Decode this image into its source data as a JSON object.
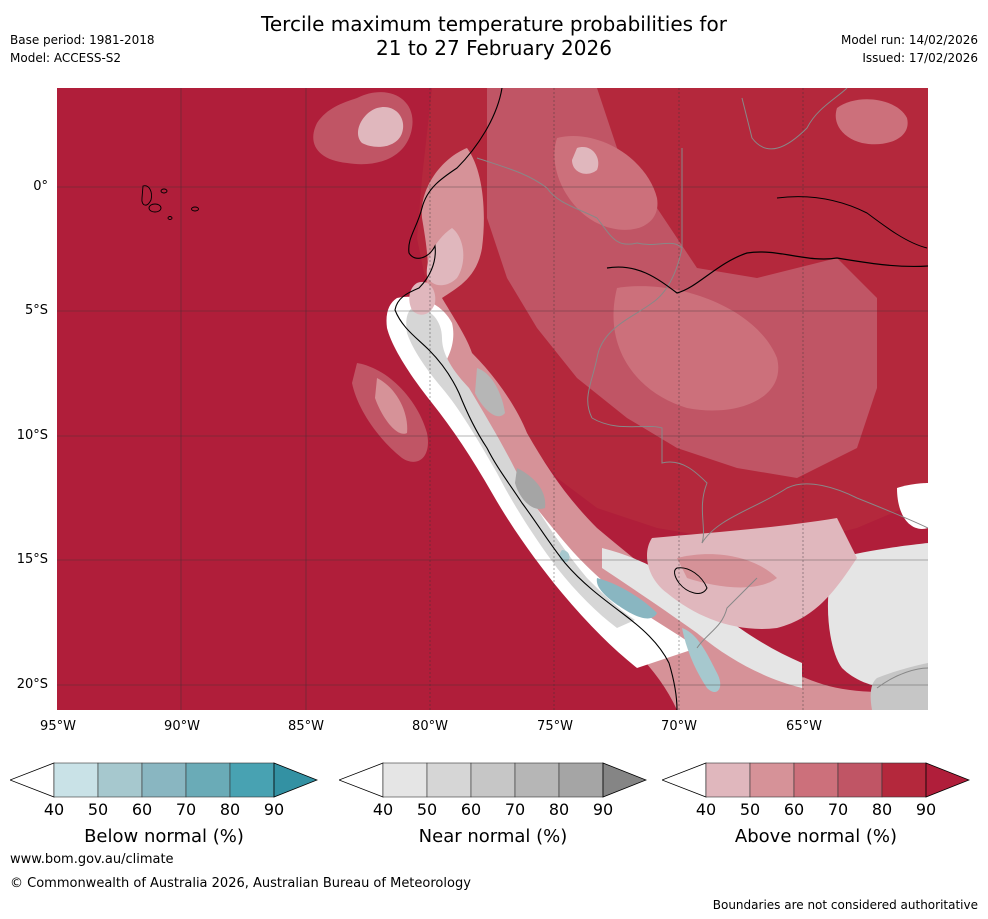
{
  "header": {
    "title_line1": "Tercile maximum temperature probabilities for",
    "title_line2": "21 to 27 February 2026",
    "base_period": "Base period: 1981-2018",
    "model": "Model: ACCESS-S2",
    "model_run": "Model run: 14/02/2026",
    "issued": "Issued: 17/02/2026"
  },
  "map": {
    "lat_labels": [
      "0°",
      "5°S",
      "10°S",
      "15°S",
      "20°S"
    ],
    "lon_labels": [
      "95°W",
      "90°W",
      "85°W",
      "80°W",
      "75°W",
      "70°W",
      "65°W"
    ]
  },
  "legend": {
    "ticks": [
      "40",
      "50",
      "60",
      "70",
      "80",
      "90"
    ],
    "below": {
      "label": "Below normal (%)",
      "colors": [
        "#ffffff",
        "#c9e2e7",
        "#a6c8ce",
        "#89b6c1",
        "#6aabb7",
        "#48a2b2",
        "#3391a3"
      ]
    },
    "near": {
      "label": "Near normal (%)",
      "colors": [
        "#ffffff",
        "#e5e5e5",
        "#d6d6d6",
        "#c6c6c6",
        "#b6b6b6",
        "#a5a5a5",
        "#858585"
      ]
    },
    "above": {
      "label": "Above normal (%)",
      "colors": [
        "#ffffff",
        "#e0b7bd",
        "#d69298",
        "#cc707b",
        "#c05565",
        "#b4283c",
        "#b01e3a"
      ]
    }
  },
  "footer": {
    "website": "www.bom.gov.au/climate",
    "copyright": "© Commonwealth of Australia 2026, Australian Bureau of Meteorology",
    "disclaimer": "Boundaries are not considered authoritative"
  }
}
